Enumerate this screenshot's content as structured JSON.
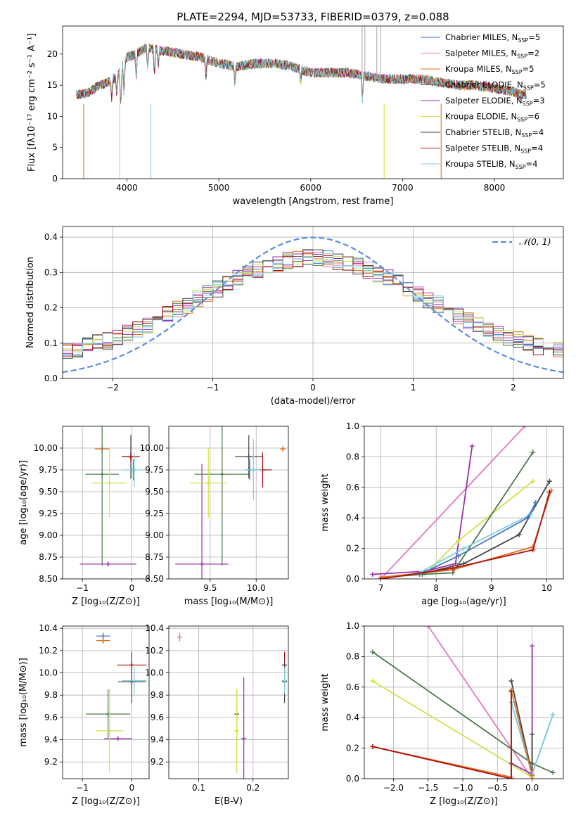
{
  "title": "PLATE=2294, MJD=53733, FIBERID=0379, z=0.088",
  "chart_data": [
    {
      "id": "spectrum",
      "type": "line",
      "xlabel": "wavelength [Angstrom, rest frame]",
      "ylabel": "Flux [fλ10⁻¹⁷ erg cm⁻² s⁻¹ A⁻¹]",
      "xlim": [
        3300,
        8750
      ],
      "ylim": [
        0,
        24.5
      ],
      "xticks": [
        4000,
        5000,
        6000,
        7000,
        8000
      ],
      "yticks": [
        0,
        5,
        10,
        15,
        20
      ],
      "grid": false,
      "legend_position": "upper right",
      "data_flux": {
        "wavelength": [
          3500,
          3600,
          3700,
          3800,
          3900,
          4000,
          4100,
          4200,
          4400,
          4600,
          4800,
          5000,
          5200,
          5400,
          5600,
          5800,
          6000,
          6200,
          6400,
          6600,
          6800,
          7000,
          7200,
          7400,
          7600,
          7800,
          8000,
          8200,
          8300
        ],
        "flux": [
          13.5,
          14.0,
          15.0,
          15.5,
          16.5,
          19.5,
          20.0,
          21.0,
          20.5,
          20.0,
          19.5,
          18.5,
          18.0,
          18.5,
          18.5,
          18.0,
          17.0,
          17.0,
          17.0,
          16.5,
          16.0,
          16.0,
          16.0,
          15.5,
          15.0,
          15.0,
          14.5,
          14.0,
          13.5
        ]
      },
      "series": [
        {
          "name": "Chabrier MILES, N_SSP=5",
          "label": "Chabrier MILES, N",
          "sub": "SSP",
          "val": "=5",
          "color": "#4477cc"
        },
        {
          "name": "Salpeter MILES, N_SSP=2",
          "label": "Salpeter MILES, N",
          "sub": "SSP",
          "val": "=2",
          "color": "#e377c2"
        },
        {
          "name": "Kroupa MILES, N_SSP=5",
          "label": "Kroupa MILES, N",
          "sub": "SSP",
          "val": "=5",
          "color": "#e07020"
        },
        {
          "name": "Chabrier ELODIE, N_SSP=5",
          "label": "Chabrier ELODIE, N",
          "sub": "SSP",
          "val": "=5",
          "color": "#4a7a4a"
        },
        {
          "name": "Salpeter ELODIE, N_SSP=3",
          "label": "Salpeter ELODIE, N",
          "sub": "SSP",
          "val": "=3",
          "color": "#9b2fae"
        },
        {
          "name": "Kroupa ELODIE, N_SSP=6",
          "label": "Kroupa ELODIE, N",
          "sub": "SSP",
          "val": "=6",
          "color": "#cfe24a"
        },
        {
          "name": "Chabrier STELIB, N_SSP=4",
          "label": "Chabrier STELIB, N",
          "sub": "SSP",
          "val": "=4",
          "color": "#444444"
        },
        {
          "name": "Salpeter STELIB, N_SSP=4",
          "label": "Salpeter STELIB, N",
          "sub": "SSP",
          "val": "=4",
          "color": "#b01010"
        },
        {
          "name": "Kroupa STELIB, N_SSP=4",
          "label": "Kroupa STELIB, N",
          "sub": "SSP",
          "val": "=4",
          "color": "#7fd0dc"
        }
      ]
    },
    {
      "id": "residuals",
      "type": "line",
      "xlabel": "(data-model)/error",
      "ylabel": "Normed distribution",
      "xlim": [
        -2.5,
        2.5
      ],
      "ylim": [
        0,
        0.43
      ],
      "xticks": [
        -2,
        -1,
        0,
        1,
        2
      ],
      "yticks": [
        0.0,
        0.1,
        0.2,
        0.3,
        0.4
      ],
      "grid": true,
      "legend": "𝒩(0, 1)",
      "legend_position": "upper right",
      "bin_edges_start": -2.5,
      "bin_width": 0.1,
      "gaussian": {
        "mean": 0,
        "sigma": 1
      }
    },
    {
      "id": "age-Z",
      "type": "scatter",
      "xlabel": "Z [log₁₀(Z/Z⊙)]",
      "ylabel": "age  [log₁₀(age/yr)]",
      "xlim": [
        -1.4,
        0.35
      ],
      "ylim": [
        8.5,
        10.25
      ],
      "xticks": [
        -1,
        0
      ],
      "yticks": [
        8.5,
        8.75,
        9.0,
        9.25,
        9.5,
        9.75,
        10.0
      ],
      "points": [
        {
          "s": 0,
          "x": 0.03,
          "y": 9.75,
          "xerr": 0.05,
          "yerr": 0.12
        },
        {
          "s": 1,
          "x": -0.6,
          "y": 9.99,
          "xerr": 0.13,
          "yerr": 0.04
        },
        {
          "s": 2,
          "x": -0.6,
          "y": 9.99,
          "xerr": 0.15,
          "yerr": 0.04
        },
        {
          "s": 3,
          "x": -0.6,
          "y": 9.7,
          "xerr": 0.34,
          "yerr": 1.05
        },
        {
          "s": 4,
          "x": -0.48,
          "y": 8.67,
          "xerr": 0.57,
          "yerr": 0.02
        },
        {
          "s": 5,
          "x": -0.45,
          "y": 9.6,
          "xerr": 0.35,
          "yerr": 0.4
        },
        {
          "s": 6,
          "x": -0.02,
          "y": 9.9,
          "xerr": 0.18,
          "yerr": 0.25
        },
        {
          "s": 7,
          "x": -0.02,
          "y": 9.9,
          "xerr": 0.18,
          "yerr": 0.05
        },
        {
          "s": 8,
          "x": 0.05,
          "y": 9.75,
          "xerr": 0.25,
          "yerr": 0.2
        }
      ]
    },
    {
      "id": "age-mass",
      "type": "scatter",
      "xlabel": "mass [log₁₀(M/M⊙)]",
      "ylabel": "",
      "xlim": [
        9.05,
        10.35
      ],
      "ylim": [
        8.5,
        10.25
      ],
      "xticks": [
        9.5,
        10.0
      ],
      "yticks": [
        8.5,
        8.75,
        9.0,
        9.25,
        9.5,
        9.75,
        10.0
      ],
      "points": [
        {
          "s": 0,
          "x": 9.93,
          "y": 9.75,
          "xerr": 0.05,
          "yerr": 0.12
        },
        {
          "s": 1,
          "x": 10.29,
          "y": 9.99,
          "xerr": 0.03,
          "yerr": 0.03
        },
        {
          "s": 2,
          "x": 10.29,
          "y": 9.99,
          "xerr": 0.03,
          "yerr": 0.03
        },
        {
          "s": 3,
          "x": 9.63,
          "y": 9.7,
          "xerr": 0.3,
          "yerr": 1.05
        },
        {
          "s": 4,
          "x": 9.41,
          "y": 8.67,
          "xerr": 0.29,
          "yerr": 1.15
        },
        {
          "s": 5,
          "x": 9.48,
          "y": 9.6,
          "xerr": 0.2,
          "yerr": 0.4
        },
        {
          "s": 6,
          "x": 9.92,
          "y": 9.9,
          "xerr": 0.15,
          "yerr": 0.25
        },
        {
          "s": 7,
          "x": 10.07,
          "y": 9.75,
          "xerr": 0.1,
          "yerr": 0.2
        },
        {
          "s": 8,
          "x": 9.97,
          "y": 9.75,
          "xerr": 0.1,
          "yerr": 0.35
        }
      ]
    },
    {
      "id": "weight-age",
      "type": "line",
      "xlabel": "age  [log₁₀(age/yr)]",
      "ylabel": "mass weight",
      "xlim": [
        6.7,
        10.3
      ],
      "ylim": [
        0,
        1.0
      ],
      "xticks": [
        7,
        8,
        9,
        10
      ],
      "yticks": [
        0.0,
        0.2,
        0.4,
        0.6,
        0.8,
        1.0
      ],
      "lines": [
        {
          "s": 1,
          "x": [
            7.0,
            9.6
          ],
          "y": [
            0.0,
            1.0
          ]
        },
        {
          "s": 4,
          "x": [
            6.85,
            7.8,
            8.35,
            8.65
          ],
          "y": [
            0.03,
            0.05,
            0.1,
            0.87
          ]
        },
        {
          "s": 5,
          "x": [
            7.0,
            7.8,
            8.4,
            9.75
          ],
          "y": [
            0.01,
            0.03,
            0.25,
            0.64
          ]
        },
        {
          "s": 3,
          "x": [
            7.0,
            7.75,
            8.3,
            9.75
          ],
          "y": [
            0.01,
            0.03,
            0.04,
            0.83
          ]
        },
        {
          "s": 6,
          "x": [
            7.7,
            8.5,
            9.5,
            10.05
          ],
          "y": [
            0.03,
            0.1,
            0.29,
            0.64
          ]
        },
        {
          "s": 8,
          "x": [
            7.7,
            8.5,
            9.7,
            9.8
          ],
          "y": [
            0.04,
            0.2,
            0.42,
            0.5
          ]
        },
        {
          "s": 0,
          "x": [
            7.7,
            8.4,
            9.65,
            9.8
          ],
          "y": [
            0.03,
            0.15,
            0.4,
            0.5
          ]
        },
        {
          "s": 2,
          "x": [
            7.0,
            8.3,
            9.75,
            10.08
          ],
          "y": [
            0.01,
            0.06,
            0.21,
            0.58
          ]
        },
        {
          "s": 7,
          "x": [
            7.0,
            8.3,
            9.75,
            10.05
          ],
          "y": [
            0.0,
            0.07,
            0.19,
            0.57
          ]
        }
      ]
    },
    {
      "id": "mass-Z",
      "type": "scatter",
      "xlabel": "Z [log₁₀(Z/Z⊙)]",
      "ylabel": "mass [log₁₀(M/M⊙)]",
      "xlim": [
        -1.4,
        0.35
      ],
      "ylim": [
        9.05,
        10.42
      ],
      "xticks": [
        -1,
        0
      ],
      "yticks": [
        9.2,
        9.4,
        9.6,
        9.8,
        10.0,
        10.2,
        10.4
      ],
      "points": [
        {
          "s": 0,
          "x": -0.58,
          "y": 10.33,
          "xerr": 0.14,
          "yerr": 0.03
        },
        {
          "s": 2,
          "x": -0.58,
          "y": 10.29,
          "xerr": 0.14,
          "yerr": 0.03
        },
        {
          "s": 3,
          "x": -0.48,
          "y": 9.63,
          "xerr": 0.45,
          "yerr": 0.22
        },
        {
          "s": 4,
          "x": -0.28,
          "y": 9.41,
          "xerr": 0.28,
          "yerr": 0.01
        },
        {
          "s": 5,
          "x": -0.45,
          "y": 9.48,
          "xerr": 0.28,
          "yerr": 0.38
        },
        {
          "s": 6,
          "x": 0.0,
          "y": 9.92,
          "xerr": 0.28,
          "yerr": 0.19
        },
        {
          "s": 7,
          "x": 0.0,
          "y": 10.07,
          "xerr": 0.3,
          "yerr": 0.12
        },
        {
          "s": 8,
          "x": 0.05,
          "y": 9.93,
          "xerr": 0.25,
          "yerr": 0.12
        }
      ]
    },
    {
      "id": "mass-ebv",
      "type": "scatter",
      "xlabel": "E(B-V)",
      "ylabel": "",
      "xlim": [
        0.045,
        0.265
      ],
      "ylim": [
        9.05,
        10.42
      ],
      "xticks": [
        0.1,
        0.2
      ],
      "yticks": [
        9.2,
        9.4,
        9.6,
        9.8,
        10.0,
        10.2,
        10.4
      ],
      "points": [
        {
          "s": 1,
          "x": 0.065,
          "y": 10.32,
          "xerr": 0.001,
          "yerr": 0.04
        },
        {
          "s": 3,
          "x": 0.17,
          "y": 9.63,
          "xerr": 0.001,
          "yerr": 0.22
        },
        {
          "s": 5,
          "x": 0.17,
          "y": 9.48,
          "xerr": 0.001,
          "yerr": 0.38
        },
        {
          "s": 4,
          "x": 0.183,
          "y": 9.41,
          "xerr": 0.001,
          "yerr": 0.55
        },
        {
          "s": 7,
          "x": 0.258,
          "y": 10.07,
          "xerr": 0.001,
          "yerr": 0.12
        },
        {
          "s": 6,
          "x": 0.258,
          "y": 9.92,
          "xerr": 0.001,
          "yerr": 0.19
        },
        {
          "s": 8,
          "x": 0.258,
          "y": 9.93,
          "xerr": 0.001,
          "yerr": 0.12
        }
      ]
    },
    {
      "id": "weight-Z",
      "type": "line",
      "xlabel": "Z [log₁₀(Z/Z⊙)]",
      "ylabel": "mass weight",
      "xlim": [
        -2.42,
        0.45
      ],
      "ylim": [
        0,
        1.0
      ],
      "xticks": [
        -2.0,
        -1.5,
        -1.0,
        -0.5,
        0.0
      ],
      "yticks": [
        0.0,
        0.2,
        0.4,
        0.6,
        0.8,
        1.0
      ],
      "lines": [
        {
          "s": 1,
          "x": [
            -1.5,
            0.0
          ],
          "y": [
            1.0,
            0.0
          ]
        },
        {
          "s": 3,
          "x": [
            -2.3,
            0.0,
            0.3
          ],
          "y": [
            0.83,
            0.1,
            0.04
          ]
        },
        {
          "s": 5,
          "x": [
            -2.3,
            0.0
          ],
          "y": [
            0.64,
            0.01
          ]
        },
        {
          "s": 4,
          "x": [
            -0.3,
            0.0,
            0.0
          ],
          "y": [
            0.1,
            0.03,
            0.87
          ]
        },
        {
          "s": 6,
          "x": [
            -0.3,
            0.0,
            0.0
          ],
          "y": [
            0.64,
            0.03,
            0.29
          ]
        },
        {
          "s": 0,
          "x": [
            -0.3,
            0.0,
            0.3
          ],
          "y": [
            0.5,
            0.03,
            0.42
          ]
        },
        {
          "s": 8,
          "x": [
            -0.3,
            0.0,
            0.3
          ],
          "y": [
            0.5,
            0.03,
            0.42
          ]
        },
        {
          "s": 2,
          "x": [
            -2.3,
            -0.3,
            -0.3,
            0.0
          ],
          "y": [
            0.21,
            0.01,
            0.58,
            0.02
          ]
        },
        {
          "s": 7,
          "x": [
            -2.3,
            -0.3,
            -0.3
          ],
          "y": [
            0.21,
            0.0,
            0.57
          ]
        }
      ]
    }
  ]
}
